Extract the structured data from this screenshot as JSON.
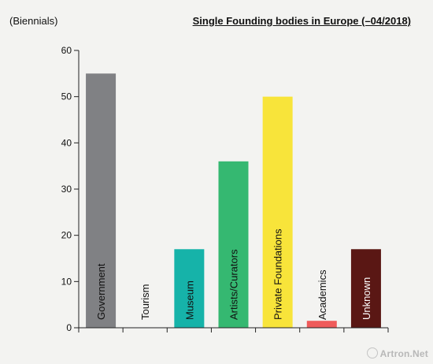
{
  "header": {
    "unit_label": "(Biennials)",
    "title": "Single Founding bodies in Europe (–04/2018)"
  },
  "watermark": "Artron.Net",
  "chart_data": {
    "type": "bar",
    "title": "Single Founding bodies in Europe (–04/2018)",
    "ylabel": "(Biennials)",
    "xlabel": "",
    "ylim": [
      0,
      60
    ],
    "yticks": [
      0,
      10,
      20,
      30,
      40,
      50,
      60
    ],
    "grid": false,
    "legend": "none",
    "category_labels_inside_bars": true,
    "categories": [
      "Government",
      "Tourism",
      "Museum",
      "Artists/Curators",
      "Private Foundations",
      "Academics",
      "Unknown"
    ],
    "values": [
      55,
      0,
      17,
      36,
      50,
      1.5,
      17
    ],
    "colors": [
      "#808184",
      "#ffffff",
      "#16b3a9",
      "#35b871",
      "#f8e43a",
      "#ef5b5b",
      "#5a1714"
    ],
    "label_colors": [
      "#111111",
      "#111111",
      "#111111",
      "#111111",
      "#111111",
      "#111111",
      "#ffffff"
    ]
  }
}
